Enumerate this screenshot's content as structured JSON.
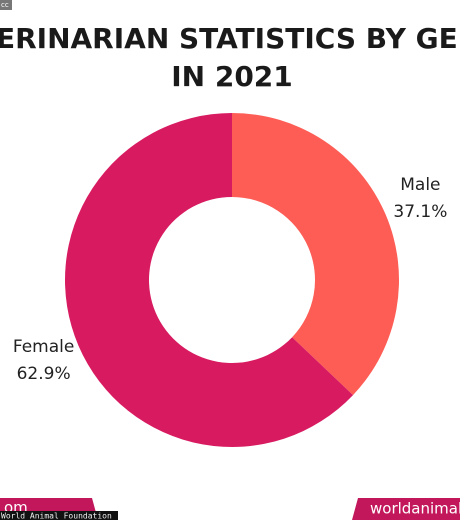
{
  "chart_data": {
    "type": "pie",
    "title": [
      "TERINARIAN STATISTICS BY GEN",
      "IN 2021"
    ],
    "categories": [
      "Male",
      "Female"
    ],
    "values": [
      37.1,
      62.9
    ],
    "value_labels": [
      "37.1%",
      "62.9%"
    ],
    "colors": [
      "#fe5d55",
      "#d81b60"
    ],
    "donut": true
  },
  "badge": "cc",
  "footer": {
    "left": "om",
    "right": "worldanimalf",
    "watermark": "World Animal Foundation"
  }
}
